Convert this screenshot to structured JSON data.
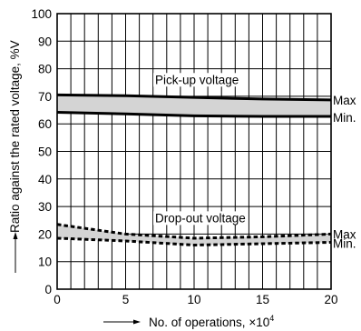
{
  "chart_data": {
    "type": "area",
    "ylabel": "Ratio against the rated voltage, %V",
    "xlabel": "No. of operations, ×10",
    "xlabel_exp": "4",
    "xlim": [
      0,
      20
    ],
    "ylim": [
      0,
      100
    ],
    "grid": true,
    "x_ticks": [
      "0",
      "5",
      "10",
      "15",
      "20"
    ],
    "y_ticks": [
      "0",
      "10",
      "20",
      "30",
      "40",
      "50",
      "60",
      "70",
      "80",
      "90",
      "100"
    ],
    "bands": [
      {
        "name": "Pick-up voltage",
        "line_style": "solid",
        "fill": "#d4d4d4",
        "upper": {
          "name": "Max",
          "x": [
            0,
            5,
            10,
            15,
            20
          ],
          "y": [
            70.5,
            70.2,
            69.6,
            69.0,
            68.7
          ]
        },
        "lower": {
          "name": "Min.",
          "x": [
            0,
            5,
            10,
            15,
            20
          ],
          "y": [
            64.2,
            63.6,
            62.9,
            62.7,
            62.7
          ]
        }
      },
      {
        "name": "Drop-out voltage",
        "line_style": "dashed",
        "fill": "#d4d4d4",
        "upper": {
          "name": "Max",
          "x": [
            0,
            5,
            10,
            15,
            20
          ],
          "y": [
            23.5,
            20.0,
            18.5,
            19.0,
            20.0
          ]
        },
        "lower": {
          "name": "Min.",
          "x": [
            0,
            5,
            10,
            15,
            20
          ],
          "y": [
            18.5,
            17.5,
            16.0,
            16.5,
            17.0
          ]
        }
      }
    ]
  }
}
